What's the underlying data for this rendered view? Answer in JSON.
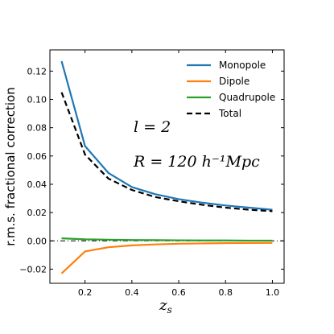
{
  "chart_data": {
    "type": "line",
    "xlabel": "z",
    "xlabel_subscript": "s",
    "ylabel": "r.m.s. fractional correction",
    "xlim": [
      0.05,
      1.05
    ],
    "ylim": [
      -0.03,
      0.135
    ],
    "x_ticks": [
      0.2,
      0.4,
      0.6,
      0.8,
      1.0
    ],
    "x_tick_labels": [
      "0.2",
      "0.4",
      "0.6",
      "0.8",
      "1.0"
    ],
    "y_ticks": [
      -0.02,
      0.0,
      0.02,
      0.04,
      0.06,
      0.08,
      0.1,
      0.12
    ],
    "y_tick_labels": [
      "−0.02",
      "0.00",
      "0.02",
      "0.04",
      "0.06",
      "0.08",
      "0.10",
      "0.12"
    ],
    "zero_line": true,
    "legend_position": "top-right",
    "annotations": {
      "l_label": "l = 2",
      "r_label": "R = 120 h⁻¹Mpc"
    },
    "x": [
      0.1,
      0.2,
      0.3,
      0.4,
      0.5,
      0.6,
      0.7,
      0.8,
      0.9,
      1.0
    ],
    "series": [
      {
        "name": "Monopole",
        "color": "#1f77b4",
        "dash": "solid",
        "values": [
          0.127,
          0.067,
          0.048,
          0.038,
          0.033,
          0.0295,
          0.027,
          0.025,
          0.0235,
          0.022
        ]
      },
      {
        "name": "Dipole",
        "color": "#ff7f0e",
        "dash": "solid",
        "values": [
          -0.023,
          -0.0075,
          -0.0045,
          -0.0032,
          -0.0025,
          -0.002,
          -0.0018,
          -0.0016,
          -0.0015,
          -0.0014
        ]
      },
      {
        "name": "Quadrupole",
        "color": "#2ca02c",
        "dash": "solid",
        "values": [
          0.0018,
          0.0011,
          0.0008,
          0.0006,
          0.0005,
          0.0004,
          0.0003,
          0.0003,
          0.0002,
          0.0002
        ]
      },
      {
        "name": "Total",
        "color": "#000000",
        "dash": "dashed",
        "values": [
          0.105,
          0.061,
          0.044,
          0.036,
          0.031,
          0.028,
          0.0255,
          0.0235,
          0.022,
          0.021
        ]
      }
    ]
  }
}
